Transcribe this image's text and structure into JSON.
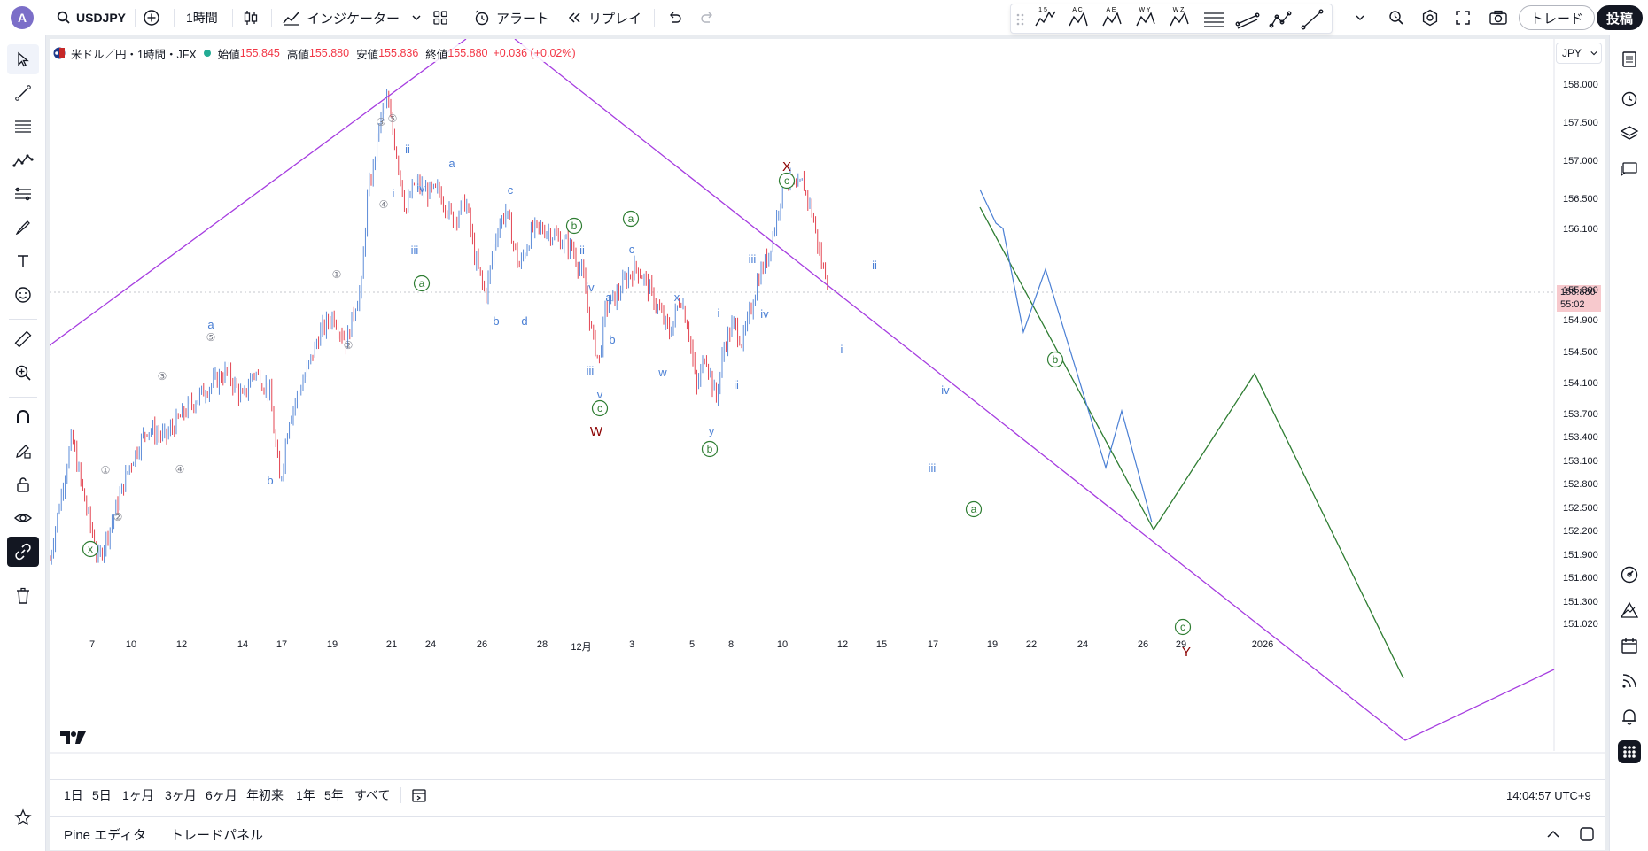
{
  "header": {
    "avatar_letter": "A",
    "symbol": "USDJPY",
    "interval": "1時間",
    "indicators_label": "インジケーター",
    "alert_label": "アラート",
    "replay_label": "リプレイ",
    "trade_label": "トレード",
    "publish_label": "投稿",
    "drawbar_labels": [
      "1 5",
      "A C",
      "A E",
      "W Y",
      "W Z"
    ]
  },
  "legend": {
    "title": "米ドル／円・1時間・JFX",
    "open_label": "始値",
    "open": "155.845",
    "high_label": "高値",
    "high": "155.880",
    "low_label": "安値",
    "low": "155.836",
    "close_label": "終値",
    "close": "155.880",
    "change": "+0.036 (+0.02%)"
  },
  "price_scale": {
    "currency": "JPY",
    "labels": [
      "158.000",
      "157.500",
      "157.000",
      "156.500",
      "156.100",
      "155.300",
      "154.900",
      "154.500",
      "154.100",
      "153.700",
      "153.400",
      "153.100",
      "152.800",
      "152.500",
      "152.200",
      "151.900",
      "151.600",
      "151.300",
      "151.020"
    ],
    "last_price": "155.880",
    "countdown": "55:02"
  },
  "time_scale": {
    "labels": [
      "7",
      "10",
      "12",
      "14",
      "17",
      "19",
      "21",
      "24",
      "26",
      "28",
      "12月",
      "3",
      "5",
      "8",
      "10",
      "12",
      "15",
      "17",
      "19",
      "22",
      "24",
      "26",
      "29",
      "2026"
    ]
  },
  "bottom": {
    "ranges": [
      "1日",
      "5日",
      "1ヶ月",
      "3ヶ月",
      "6ヶ月",
      "年初来",
      "1年",
      "5年",
      "すべて"
    ],
    "clock": "14:04:57 UTC+9"
  },
  "panels": {
    "pine_editor": "Pine エディタ",
    "trade_panel": "トレードパネル"
  },
  "colors": {
    "up": "#4a7fd4",
    "down": "#e0313f",
    "channel": "#a63de0",
    "wave_green": "#2e7d32",
    "wave_blue": "#2962ff",
    "wave_dark_red": "#8b0000",
    "labels_gray": "#787b86"
  },
  "chart_data": {
    "type": "candlestick",
    "title": "米ドル／円・1時間・JFX",
    "ylim": [
      150.9,
      158.4
    ],
    "close_path": [
      [
        0,
        152.9
      ],
      [
        15,
        153.7
      ],
      [
        25,
        154.2
      ],
      [
        38,
        153.6
      ],
      [
        55,
        152.9
      ],
      [
        70,
        153.3
      ],
      [
        90,
        153.9
      ],
      [
        110,
        154.3
      ],
      [
        130,
        154.2
      ],
      [
        155,
        154.5
      ],
      [
        175,
        154.7
      ],
      [
        200,
        154.9
      ],
      [
        218,
        154.6
      ],
      [
        230,
        154.9
      ],
      [
        248,
        154.7
      ],
      [
        260,
        153.7
      ],
      [
        270,
        154.4
      ],
      [
        290,
        154.9
      ],
      [
        305,
        155.3
      ],
      [
        320,
        155.5
      ],
      [
        335,
        155.2
      ],
      [
        345,
        155.6
      ],
      [
        352,
        155.8
      ],
      [
        358,
        156.7
      ],
      [
        366,
        157.1
      ],
      [
        372,
        157.5
      ],
      [
        380,
        157.8
      ],
      [
        390,
        157.3
      ],
      [
        402,
        156.6
      ],
      [
        412,
        156.9
      ],
      [
        425,
        156.8
      ],
      [
        440,
        156.8
      ],
      [
        455,
        156.5
      ],
      [
        470,
        156.7
      ],
      [
        480,
        156.1
      ],
      [
        492,
        155.7
      ],
      [
        505,
        156.4
      ],
      [
        515,
        156.6
      ],
      [
        530,
        156.0
      ],
      [
        545,
        156.4
      ],
      [
        560,
        156.4
      ],
      [
        575,
        156.3
      ],
      [
        590,
        156.2
      ],
      [
        602,
        155.9
      ],
      [
        612,
        155.3
      ],
      [
        620,
        155.0
      ],
      [
        628,
        155.6
      ],
      [
        640,
        155.7
      ],
      [
        652,
        155.9
      ],
      [
        662,
        156.0
      ],
      [
        670,
        155.9
      ],
      [
        680,
        155.7
      ],
      [
        690,
        155.5
      ],
      [
        700,
        155.3
      ],
      [
        712,
        155.7
      ],
      [
        722,
        155.3
      ],
      [
        730,
        154.7
      ],
      [
        740,
        155.1
      ],
      [
        752,
        154.6
      ],
      [
        762,
        155.2
      ],
      [
        772,
        155.4
      ],
      [
        782,
        155.2
      ],
      [
        790,
        155.5
      ],
      [
        800,
        155.9
      ],
      [
        810,
        156.1
      ],
      [
        820,
        156.5
      ],
      [
        830,
        157.0
      ],
      [
        842,
        156.8
      ],
      [
        850,
        156.9
      ],
      [
        860,
        156.6
      ],
      [
        872,
        156.0
      ],
      [
        880,
        155.88
      ]
    ],
    "wave_labels": [
      "ⓧ",
      "a",
      "b",
      "W",
      "ⓐ",
      "ⓑ",
      "ⓒ",
      "X",
      "Y",
      "i",
      "ii",
      "iii",
      "iv",
      "v",
      "w",
      "x",
      "y",
      "c",
      "d"
    ]
  }
}
